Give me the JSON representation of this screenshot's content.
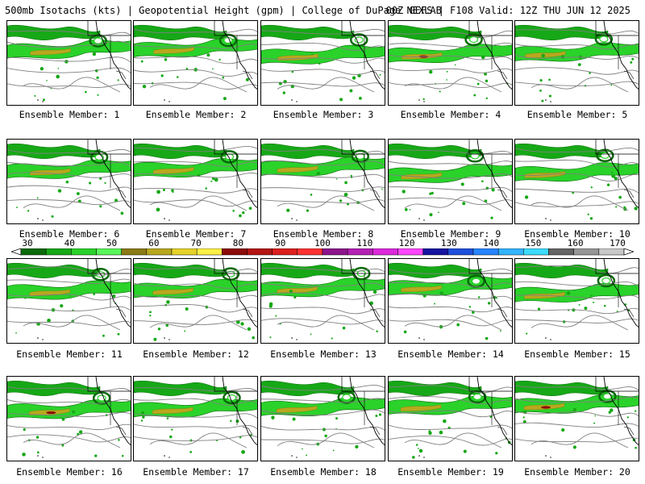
{
  "title": {
    "left": "500mb Isotachs (kts) | Geopotential Height (gpm) | College of DuPage NEXLAB",
    "right": "00Z GEFS | F108 Valid: 12Z THU JUN 12 2025"
  },
  "members": [
    "Ensemble Member: 1",
    "Ensemble Member: 2",
    "Ensemble Member: 3",
    "Ensemble Member: 4",
    "Ensemble Member: 5",
    "Ensemble Member: 6",
    "Ensemble Member: 7",
    "Ensemble Member: 8",
    "Ensemble Member: 9",
    "Ensemble Member: 10",
    "Ensemble Member: 11",
    "Ensemble Member: 12",
    "Ensemble Member: 13",
    "Ensemble Member: 14",
    "Ensemble Member: 15",
    "Ensemble Member: 16",
    "Ensemble Member: 17",
    "Ensemble Member: 18",
    "Ensemble Member: 19",
    "Ensemble Member: 20"
  ],
  "colorbar": {
    "tick_labels": [
      "30",
      "40",
      "50",
      "60",
      "70",
      "80",
      "90",
      "100",
      "110",
      "120",
      "130",
      "140",
      "150",
      "160",
      "170"
    ],
    "colors": [
      "#0a6a0a",
      "#16a816",
      "#2ad22a",
      "#5af55a",
      "#8a7a14",
      "#b8a81e",
      "#e6d22a",
      "#fff046",
      "#8c0a0a",
      "#b41414",
      "#dc1e1e",
      "#ff3232",
      "#8c148c",
      "#b41eb4",
      "#dc28dc",
      "#ff46ff",
      "#1414a0",
      "#1e50dc",
      "#2884ff",
      "#32b4ff",
      "#3cdcff",
      "#646464",
      "#969696",
      "#c8c8c8"
    ]
  }
}
